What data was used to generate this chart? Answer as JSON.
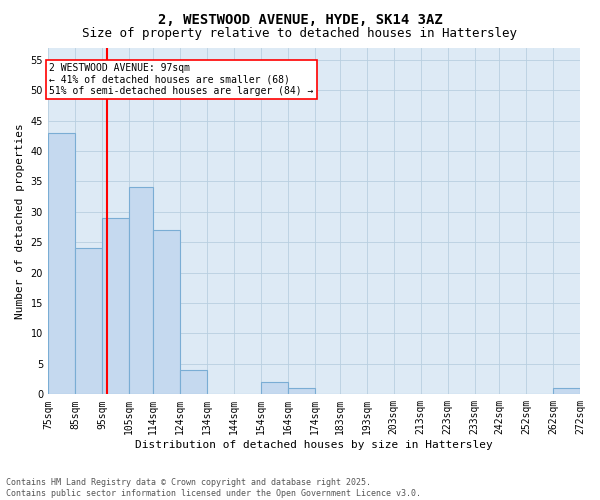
{
  "title": "2, WESTWOOD AVENUE, HYDE, SK14 3AZ",
  "subtitle": "Size of property relative to detached houses in Hattersley",
  "xlabel": "Distribution of detached houses by size in Hattersley",
  "ylabel": "Number of detached properties",
  "bin_edges": [
    75,
    85,
    95,
    105,
    114,
    124,
    134,
    144,
    154,
    164,
    174,
    183,
    193,
    203,
    213,
    223,
    233,
    242,
    252,
    262,
    272
  ],
  "counts": [
    43,
    24,
    29,
    34,
    27,
    4,
    0,
    0,
    2,
    1,
    0,
    0,
    0,
    0,
    0,
    0,
    0,
    0,
    0,
    1
  ],
  "bar_color": "#c5d9ef",
  "bar_edge_color": "#7aadd4",
  "property_size": 97,
  "property_label": "2 WESTWOOD AVENUE: 97sqm",
  "annotation_line1": "← 41% of detached houses are smaller (68)",
  "annotation_line2": "51% of semi-detached houses are larger (84) →",
  "annotation_box_color": "white",
  "annotation_box_edge": "red",
  "vline_color": "red",
  "ylim": [
    0,
    57
  ],
  "yticks": [
    0,
    5,
    10,
    15,
    20,
    25,
    30,
    35,
    40,
    45,
    50,
    55
  ],
  "grid_color": "#b8cfe0",
  "bg_color": "#ddeaf5",
  "footer_line1": "Contains HM Land Registry data © Crown copyright and database right 2025.",
  "footer_line2": "Contains public sector information licensed under the Open Government Licence v3.0.",
  "title_fontsize": 10,
  "subtitle_fontsize": 9,
  "axis_label_fontsize": 8,
  "tick_fontsize": 7,
  "annotation_fontsize": 7,
  "footer_fontsize": 6
}
